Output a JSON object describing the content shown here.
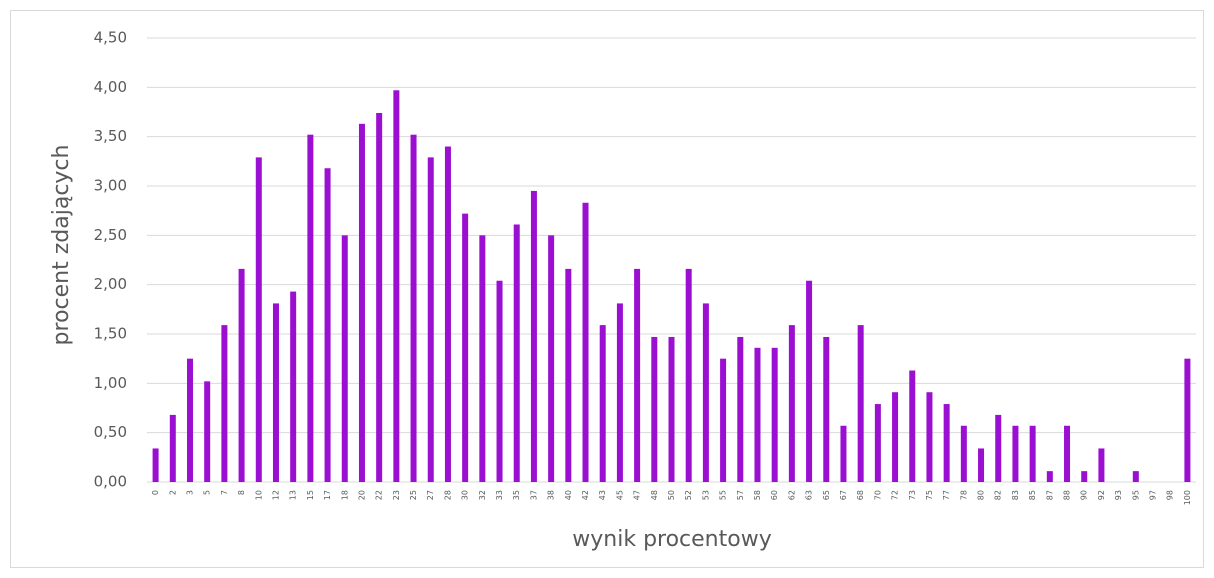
{
  "chart_data": {
    "type": "bar",
    "x_label": "wynik procentowy",
    "y_label": "procent zdających",
    "categories": [
      "0",
      "2",
      "3",
      "5",
      "7",
      "8",
      "10",
      "12",
      "13",
      "15",
      "17",
      "18",
      "20",
      "22",
      "23",
      "25",
      "27",
      "28",
      "30",
      "32",
      "33",
      "35",
      "37",
      "38",
      "40",
      "42",
      "43",
      "45",
      "47",
      "48",
      "50",
      "52",
      "53",
      "55",
      "57",
      "58",
      "60",
      "62",
      "63",
      "65",
      "67",
      "68",
      "70",
      "72",
      "73",
      "75",
      "77",
      "78",
      "80",
      "82",
      "83",
      "85",
      "87",
      "88",
      "90",
      "92",
      "93",
      "95",
      "97",
      "98",
      "100"
    ],
    "values": [
      0.34,
      0.68,
      1.25,
      1.02,
      1.59,
      2.16,
      3.29,
      1.81,
      1.93,
      3.52,
      3.18,
      2.5,
      3.63,
      3.74,
      3.97,
      3.52,
      3.29,
      3.4,
      2.72,
      2.5,
      2.04,
      2.61,
      2.95,
      2.5,
      2.16,
      2.83,
      1.59,
      1.81,
      2.16,
      1.47,
      1.47,
      2.16,
      1.81,
      1.25,
      1.47,
      1.36,
      1.36,
      1.59,
      2.04,
      1.47,
      0.57,
      1.59,
      0.79,
      0.91,
      1.13,
      0.91,
      0.79,
      0.57,
      0.34,
      0.68,
      0.57,
      0.57,
      0.11,
      0.57,
      0.11,
      0.34,
      0,
      0.11,
      0,
      0,
      1.25
    ],
    "color": "#9b0fd1",
    "ylim": [
      0,
      4.5
    ],
    "yticks": [
      {
        "value": 0,
        "label": "0,00"
      },
      {
        "value": 0.5,
        "label": "0,50"
      },
      {
        "value": 1,
        "label": "1,00"
      },
      {
        "value": 1.5,
        "label": "1,50"
      },
      {
        "value": 2,
        "label": "2,00"
      },
      {
        "value": 2.5,
        "label": "2,50"
      },
      {
        "value": 3,
        "label": "3,00"
      },
      {
        "value": 3.5,
        "label": "3,50"
      },
      {
        "value": 4,
        "label": "4,00"
      },
      {
        "value": 4.5,
        "label": "4,50"
      }
    ],
    "grid": true
  }
}
